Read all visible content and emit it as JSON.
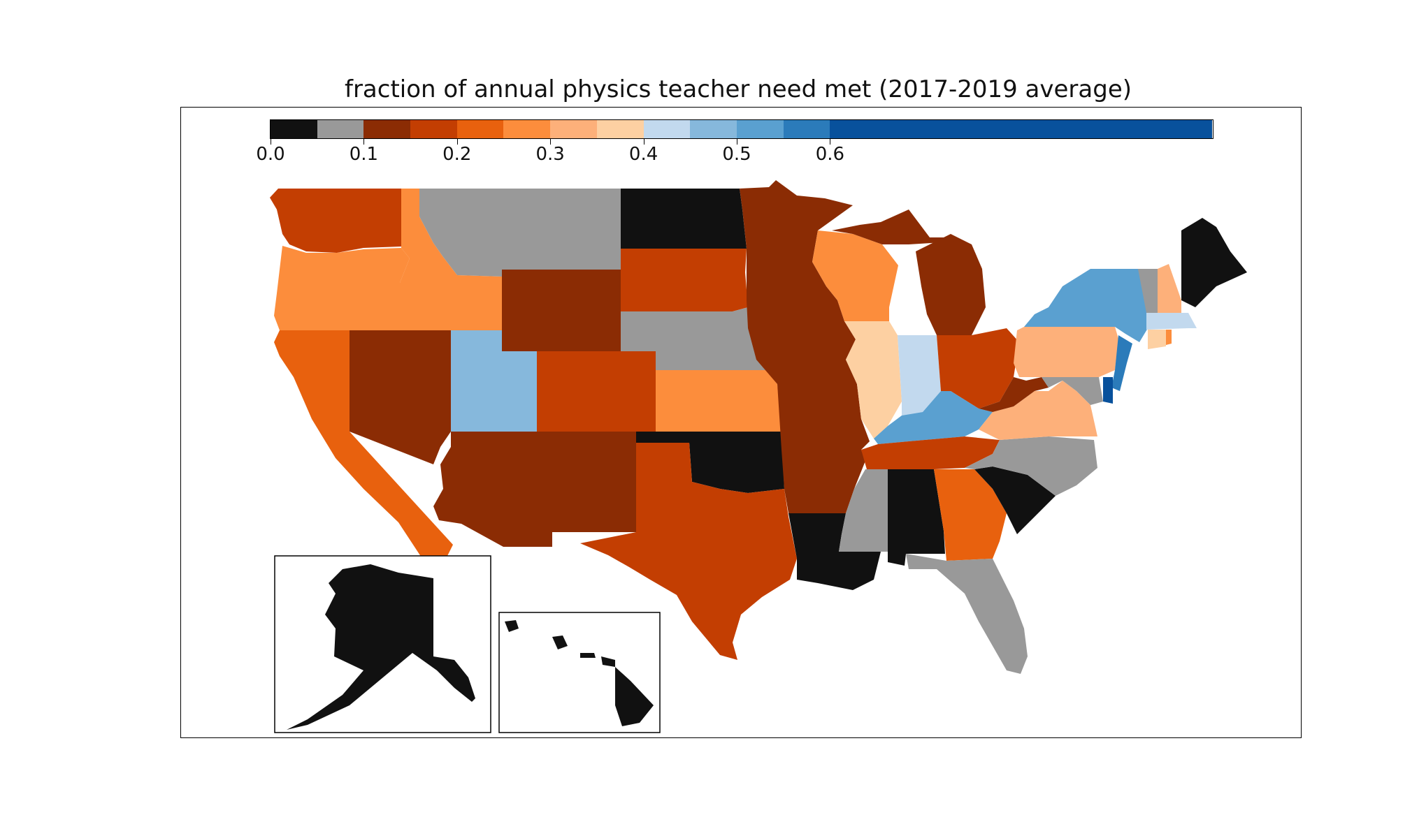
{
  "title": "fraction of annual physics teacher need met (2017-2019 average)",
  "colorbar": {
    "colors": [
      "#111111",
      "#999999",
      "#8b2c04",
      "#c33e02",
      "#e8610e",
      "#fc8d3c",
      "#fdb07a",
      "#fdd0a2",
      "#c2d9ee",
      "#86b8dc",
      "#5aa0d0",
      "#2b7bba",
      "#08519c"
    ],
    "tick_labels": [
      "0.0",
      "0.1",
      "0.2",
      "0.3",
      "0.4",
      "0.5",
      "0.6"
    ],
    "min": 0.0,
    "max": 1.0
  },
  "legend_bins": [
    "0.00-0.05",
    "0.05-0.10",
    "0.10-0.15",
    "0.15-0.20",
    "0.20-0.25",
    "0.25-0.30",
    "0.30-0.35",
    "0.35-0.40",
    "0.40-0.45",
    "0.45-0.50",
    "0.50-0.55",
    "0.55-0.60",
    "0.60+"
  ],
  "states": {
    "WA": 3,
    "OR": 5,
    "CA": 4,
    "ID": 5,
    "NV": 2,
    "MT": 1,
    "WY": 2,
    "UT": 9,
    "AZ": 2,
    "CO": 3,
    "NM": 2,
    "ND": 0,
    "SD": 3,
    "NE": 1,
    "KS": 5,
    "OK": 0,
    "TX": 3,
    "MN": 2,
    "IA": 2,
    "MO": 2,
    "AR": 2,
    "LA": 0,
    "WI": 5,
    "IL": 7,
    "MI": 2,
    "IN": 8,
    "OH": 3,
    "KY": 10,
    "TN": 3,
    "MS": 1,
    "AL": 0,
    "GA": 4,
    "FL": 1,
    "SC": 0,
    "NC": 1,
    "VA": 6,
    "WV": 2,
    "PA": 6,
    "NY": 10,
    "NJ": 11,
    "DE": 12,
    "MD": 1,
    "VT": 1,
    "NH": 6,
    "ME": 0,
    "MA": 8,
    "CT": 7,
    "RI": 5,
    "AK": 0,
    "HI": 0
  }
}
